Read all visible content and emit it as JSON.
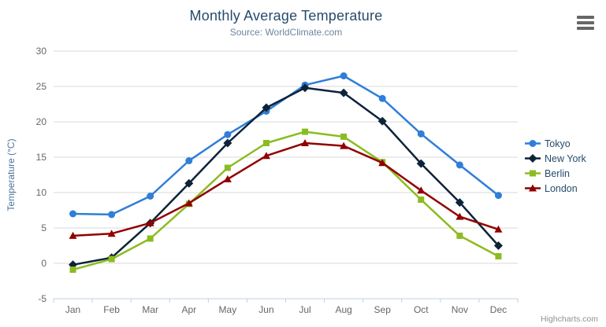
{
  "header": {
    "title": "Monthly Average Temperature",
    "subtitle": "Source: WorldClimate.com"
  },
  "chart_data": {
    "type": "line",
    "title": "Monthly Average Temperature",
    "subtitle": "Source: WorldClimate.com",
    "categories": [
      "Jan",
      "Feb",
      "Mar",
      "Apr",
      "May",
      "Jun",
      "Jul",
      "Aug",
      "Sep",
      "Oct",
      "Nov",
      "Dec"
    ],
    "series": [
      {
        "name": "Tokyo",
        "color": "#2f7ed8",
        "marker": "circle",
        "values": [
          7.0,
          6.9,
          9.5,
          14.5,
          18.2,
          21.5,
          25.2,
          26.5,
          23.3,
          18.3,
          13.9,
          9.6
        ]
      },
      {
        "name": "New York",
        "color": "#0d233a",
        "marker": "diamond",
        "values": [
          -0.2,
          0.8,
          5.7,
          11.3,
          17.0,
          22.0,
          24.8,
          24.1,
          20.1,
          14.1,
          8.6,
          2.5
        ]
      },
      {
        "name": "Berlin",
        "color": "#8bbc21",
        "marker": "square",
        "values": [
          -0.9,
          0.6,
          3.5,
          8.4,
          13.5,
          17.0,
          18.6,
          17.9,
          14.3,
          9.0,
          3.9,
          1.0
        ]
      },
      {
        "name": "London",
        "color": "#910000",
        "marker": "triangle",
        "values": [
          3.9,
          4.2,
          5.7,
          8.5,
          11.9,
          15.2,
          17.0,
          16.6,
          14.2,
          10.3,
          6.6,
          4.8
        ]
      }
    ],
    "xlabel": "",
    "ylabel": "Temperature (°C)",
    "ylim": [
      -5,
      30
    ],
    "ytick_step": 5,
    "grid": true,
    "grid_color": "#d8d8d8",
    "axis_line_color": "#c0d0e0",
    "legend_position": "right"
  },
  "credits": {
    "text": "Highcharts.com"
  }
}
